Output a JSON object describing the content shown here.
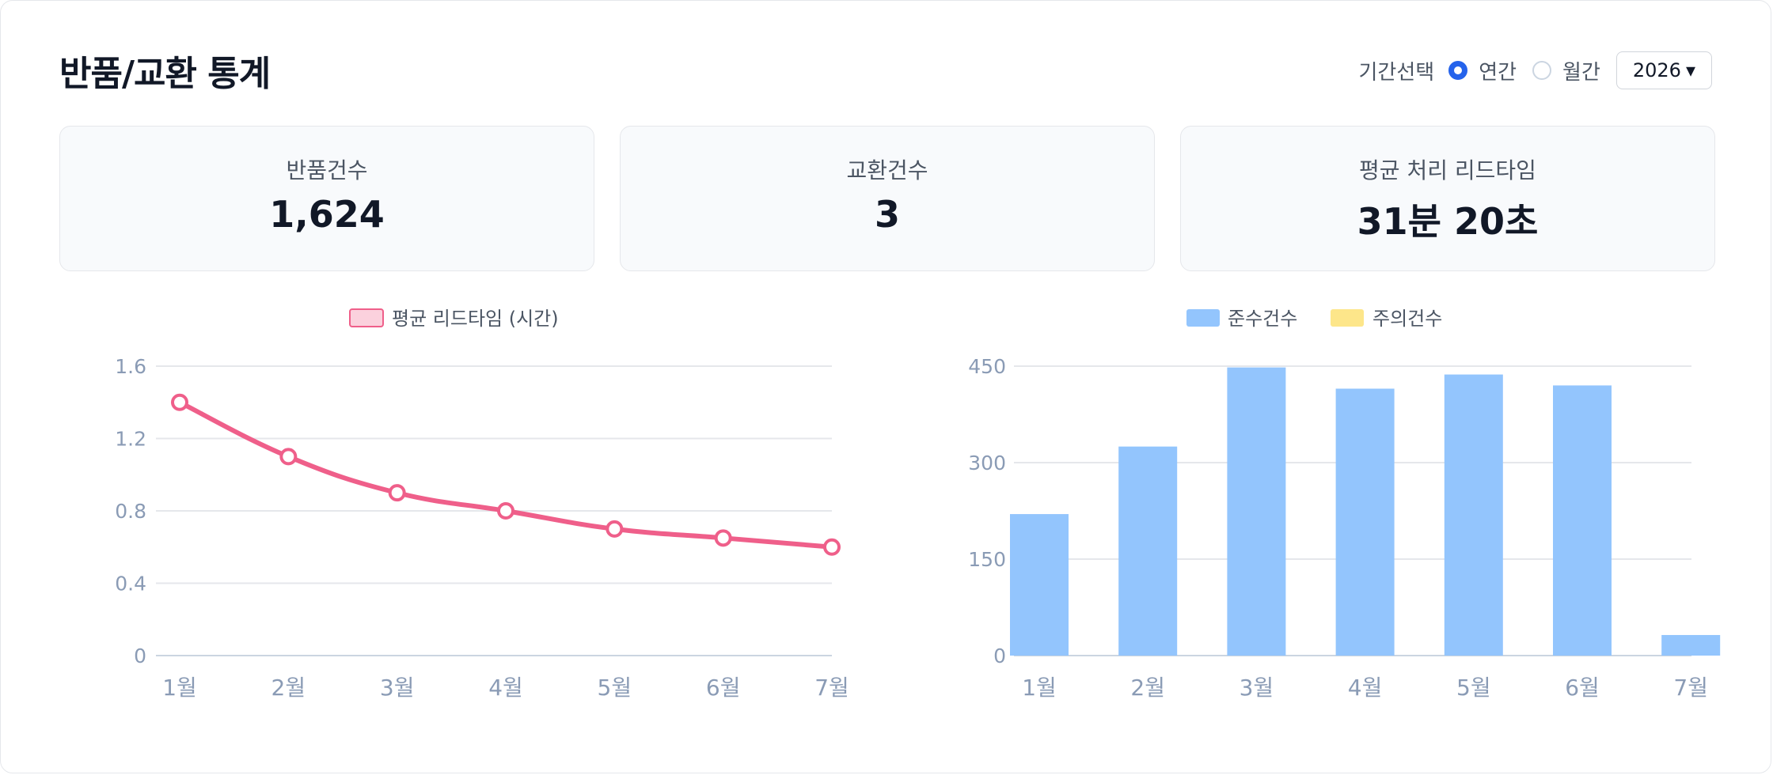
{
  "header": {
    "title": "반품/교환 통계",
    "period_label": "기간선택",
    "options": [
      {
        "label": "연간",
        "selected": true
      },
      {
        "label": "월간",
        "selected": false
      }
    ],
    "year": "2026",
    "year_caret": "▾"
  },
  "cards": [
    {
      "label": "반품건수",
      "value": "1,624"
    },
    {
      "label": "교환건수",
      "value": "3"
    },
    {
      "label": "평균 처리 리드타임",
      "value": "31분 20초"
    }
  ],
  "colors": {
    "line": "#ef5f8a",
    "line_fill": "#fbd1dd",
    "bar_compliant": "#93c5fd",
    "bar_caution": "#fde68a",
    "grid": "#e5e7eb",
    "radio_accent": "#2563eb"
  },
  "chart_data": [
    {
      "type": "line",
      "legend": [
        "평균 리드타임 (시간)"
      ],
      "categories": [
        "1월",
        "2월",
        "3월",
        "4월",
        "5월",
        "6월",
        "7월"
      ],
      "series": [
        {
          "name": "평균 리드타임 (시간)",
          "values": [
            1.4,
            1.1,
            0.9,
            0.8,
            0.7,
            0.65,
            0.6
          ]
        }
      ],
      "yticks": [
        "0",
        "0.4",
        "0.8",
        "1.2",
        "1.6"
      ],
      "ylim": [
        0,
        1.6
      ],
      "grid": true,
      "legend_position": "top"
    },
    {
      "type": "bar",
      "legend": [
        "준수건수",
        "주의건수"
      ],
      "categories": [
        "1월",
        "2월",
        "3월",
        "4월",
        "5월",
        "6월",
        "7월"
      ],
      "series": [
        {
          "name": "준수건수",
          "values": [
            220,
            325,
            448,
            415,
            437,
            420,
            32
          ]
        },
        {
          "name": "주의건수",
          "values": [
            0,
            0,
            0,
            0,
            0,
            0,
            0
          ]
        }
      ],
      "yticks": [
        "0",
        "150",
        "300",
        "450"
      ],
      "ylim": [
        0,
        450
      ],
      "grid": true,
      "legend_position": "top"
    }
  ]
}
